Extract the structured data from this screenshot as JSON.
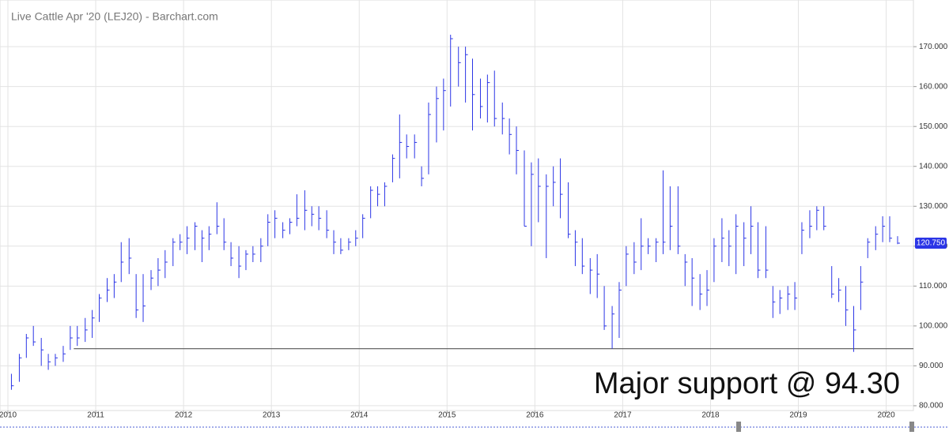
{
  "chart_data": {
    "type": "ohlc",
    "title": "Live Cattle Apr '20 (LEJ20) - Barchart.com",
    "annotation": "Major support @ 94.30",
    "support": 94.3,
    "support_start": 2010.75,
    "color": "#2b35e6",
    "support_color": "#555555",
    "grid": true,
    "last_price": {
      "value": 120.75,
      "label": "120.750"
    },
    "xlim": [
      2009.91,
      2020.31
    ],
    "xticks": [
      2010,
      2011,
      2012,
      2013,
      2014,
      2015,
      2016,
      2017,
      2018,
      2019,
      2020
    ],
    "ylim": [
      78.8,
      181.7
    ],
    "yticks": [
      {
        "value": 80,
        "label": "80.000"
      },
      {
        "value": 90,
        "label": "90.000"
      },
      {
        "value": 100,
        "label": "100.000"
      },
      {
        "value": 110,
        "label": "110.000"
      },
      {
        "value": 120,
        "label": "120.000"
      },
      {
        "value": 130,
        "label": "130.000"
      },
      {
        "value": 140,
        "label": "140.000"
      },
      {
        "value": 150,
        "label": "150.000"
      },
      {
        "value": 160,
        "label": "160.000"
      },
      {
        "value": 170,
        "label": "170.000"
      }
    ],
    "x": [
      2010.04,
      2010.13,
      2010.21,
      2010.29,
      2010.38,
      2010.46,
      2010.54,
      2010.63,
      2010.71,
      2010.79,
      2010.88,
      2010.96,
      2011.04,
      2011.13,
      2011.21,
      2011.29,
      2011.38,
      2011.46,
      2011.54,
      2011.63,
      2011.71,
      2011.79,
      2011.88,
      2011.96,
      2012.04,
      2012.13,
      2012.21,
      2012.29,
      2012.38,
      2012.46,
      2012.54,
      2012.63,
      2012.71,
      2012.79,
      2012.88,
      2012.96,
      2013.04,
      2013.13,
      2013.21,
      2013.29,
      2013.38,
      2013.46,
      2013.54,
      2013.63,
      2013.71,
      2013.79,
      2013.88,
      2013.96,
      2014.04,
      2014.13,
      2014.21,
      2014.29,
      2014.38,
      2014.46,
      2014.54,
      2014.63,
      2014.71,
      2014.79,
      2014.88,
      2014.96,
      2015.04,
      2015.13,
      2015.21,
      2015.29,
      2015.38,
      2015.46,
      2015.54,
      2015.63,
      2015.71,
      2015.79,
      2015.88,
      2015.96,
      2016.04,
      2016.13,
      2016.21,
      2016.29,
      2016.38,
      2016.46,
      2016.54,
      2016.63,
      2016.71,
      2016.79,
      2016.88,
      2016.96,
      2017.04,
      2017.13,
      2017.21,
      2017.29,
      2017.38,
      2017.46,
      2017.54,
      2017.63,
      2017.71,
      2017.79,
      2017.88,
      2017.96,
      2018.04,
      2018.13,
      2018.21,
      2018.29,
      2018.38,
      2018.46,
      2018.54,
      2018.63,
      2018.71,
      2018.79,
      2018.88,
      2018.96,
      2019.04,
      2019.13,
      2019.21,
      2019.29,
      2019.38,
      2019.46,
      2019.54,
      2019.63,
      2019.71,
      2019.79,
      2019.88,
      2019.96,
      2020.04,
      2020.13
    ],
    "high": [
      88,
      93,
      98,
      100,
      97,
      93,
      93,
      95,
      100,
      100,
      102,
      104,
      108,
      112,
      113,
      121,
      122,
      113,
      113,
      114,
      117,
      119,
      122,
      123,
      125,
      126,
      124,
      125,
      131,
      127,
      121,
      120,
      119,
      120,
      122,
      128,
      129,
      126,
      127,
      133,
      134,
      130,
      130,
      129,
      124,
      122,
      122,
      124,
      128,
      135,
      135,
      136,
      143,
      153,
      148,
      148,
      140,
      156,
      160,
      162,
      173,
      170,
      170,
      167,
      162,
      163,
      164,
      156,
      152,
      150,
      144,
      141,
      142,
      138,
      140,
      142,
      136,
      124,
      122,
      117,
      118,
      110,
      105,
      111,
      120,
      121,
      127,
      122,
      122,
      139,
      135,
      135,
      118,
      117,
      113,
      114,
      122,
      127,
      124,
      128,
      126,
      130,
      126,
      125,
      110,
      109,
      110,
      111,
      126,
      129,
      130,
      130,
      115,
      112,
      110,
      105,
      115,
      122,
      125,
      127.5,
      127.5,
      122.5
    ],
    "low": [
      84,
      86,
      92,
      95,
      90,
      89,
      90,
      91,
      94,
      95,
      96,
      97,
      101,
      106,
      107,
      111,
      113,
      102,
      101,
      109,
      110,
      112,
      115,
      119,
      118,
      119,
      116,
      119,
      123,
      119,
      115,
      112,
      114,
      116,
      116,
      120,
      122,
      122,
      123,
      125,
      124,
      125,
      124,
      122,
      118,
      118,
      119,
      120,
      122,
      127,
      130,
      130,
      136,
      137,
      142,
      142,
      135,
      138,
      146,
      149,
      155,
      160,
      156,
      149,
      152,
      151,
      150,
      148,
      143,
      138,
      125,
      120,
      126,
      117,
      130,
      127,
      122,
      115,
      113,
      108,
      107,
      99,
      94.3,
      97,
      110,
      113,
      114,
      118,
      116,
      118,
      119,
      118,
      110,
      105,
      104,
      105,
      111,
      116,
      115,
      113,
      115,
      118,
      112,
      112,
      102,
      103,
      104,
      104,
      118,
      122,
      124,
      124,
      107,
      106,
      100,
      93.5,
      104,
      117,
      119,
      121,
      121,
      120.5
    ],
    "close": [
      85,
      92,
      97,
      96,
      94,
      91,
      92,
      93,
      97,
      97,
      99,
      102,
      107,
      109,
      111,
      116,
      117,
      104,
      105,
      112,
      114,
      116,
      121,
      121,
      122,
      125,
      122,
      123,
      125,
      121,
      117,
      115,
      118,
      118,
      120,
      126,
      127,
      124,
      126,
      127,
      129,
      128,
      127,
      124,
      121,
      119,
      121,
      122,
      127,
      134,
      133,
      135,
      142,
      146,
      145,
      146,
      137,
      153,
      157,
      159,
      172,
      166,
      168,
      158,
      155,
      161,
      152,
      152,
      148,
      144,
      125,
      138,
      135,
      135,
      136,
      133,
      123,
      121,
      115,
      114,
      113,
      100,
      103,
      109,
      118,
      116,
      120,
      120,
      121,
      121,
      125,
      120,
      116,
      112,
      108,
      109,
      120,
      122,
      120,
      125,
      122,
      125,
      114,
      114,
      106,
      107,
      108,
      107,
      124,
      125,
      129,
      125,
      108,
      109,
      104,
      99,
      111,
      121,
      123,
      125,
      122,
      120.75
    ]
  }
}
